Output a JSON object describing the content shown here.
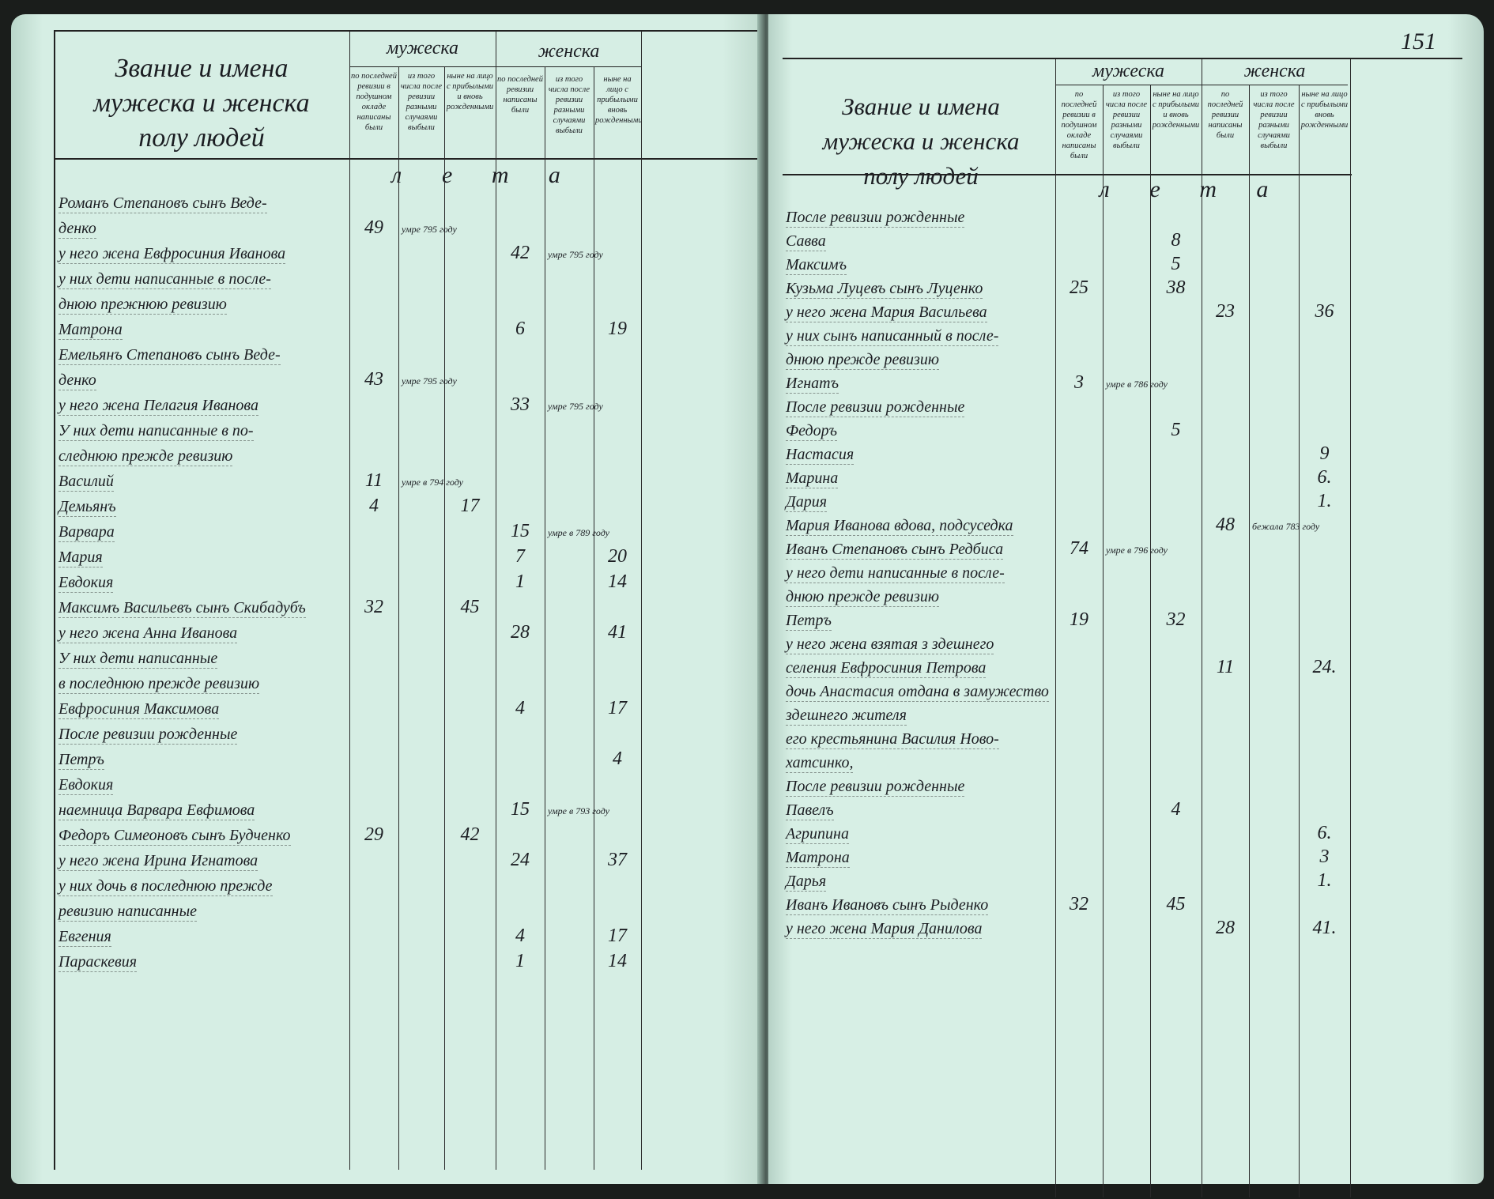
{
  "header": {
    "title_lines": [
      "Звание и имена",
      "мужеска и женска",
      "полу людей"
    ],
    "male_group": "мужеска",
    "female_group": "женска",
    "age_label": "лета",
    "male_columns": [
      "по последней ревизии в подушном окладе написаны были",
      "из того числа после ревизии разными случаями выбыли",
      "ныне на лицо с прибылыми и вновь рожденными"
    ],
    "female_columns": [
      "по последней ревизии написаны были",
      "из того числа после ревизии разными случаями выбыли",
      "ныне на лицо с прибылыми вновь рожденными"
    ]
  },
  "right_page_number": "151",
  "left_page": {
    "rows": [
      {
        "name": "Романъ Степановъ сынъ Веде-",
        "c": [
          "",
          "",
          "",
          "",
          "",
          ""
        ]
      },
      {
        "name": "денко",
        "c": [
          "49",
          "умре 795 году",
          "",
          "",
          "",
          ""
        ]
      },
      {
        "name": "у него жена Евфросиния Иванова",
        "c": [
          "",
          "",
          "",
          "42",
          "умре 795 году",
          ""
        ]
      },
      {
        "name": "у них дети написанные в после-",
        "c": [
          "",
          "",
          "",
          "",
          "",
          ""
        ]
      },
      {
        "name": "днюю прежнюю ревизию",
        "c": [
          "",
          "",
          "",
          "",
          "",
          ""
        ]
      },
      {
        "name": "Матрона",
        "c": [
          "",
          "",
          "",
          "6",
          "",
          "19"
        ]
      },
      {
        "name": "Емельянъ Степановъ сынъ Веде-",
        "c": [
          "",
          "",
          "",
          "",
          "",
          ""
        ]
      },
      {
        "name": "денко",
        "c": [
          "43",
          "умре 795 году",
          "",
          "",
          "",
          ""
        ]
      },
      {
        "name": "у него жена Пелагия Иванова",
        "c": [
          "",
          "",
          "",
          "33",
          "умре 795 году",
          ""
        ]
      },
      {
        "name": "У них дети написанные в по-",
        "c": [
          "",
          "",
          "",
          "",
          "",
          ""
        ]
      },
      {
        "name": "следнюю прежде ревизию",
        "c": [
          "",
          "",
          "",
          "",
          "",
          ""
        ]
      },
      {
        "name": "Василий",
        "c": [
          "11",
          "умре в 794 году",
          "",
          "",
          "",
          ""
        ]
      },
      {
        "name": "Демьянъ",
        "c": [
          "4",
          "",
          "17",
          "",
          "",
          ""
        ]
      },
      {
        "name": "Варвара",
        "c": [
          "",
          "",
          "",
          "15",
          "умре в 789 году",
          ""
        ]
      },
      {
        "name": "Мария",
        "c": [
          "",
          "",
          "",
          "7",
          "",
          "20"
        ]
      },
      {
        "name": "Евдокия",
        "c": [
          "",
          "",
          "",
          "1",
          "",
          "14"
        ]
      },
      {
        "name": "Максимъ Васильевъ сынъ Скибадубъ",
        "c": [
          "32",
          "",
          "45",
          "",
          "",
          ""
        ]
      },
      {
        "name": "у него жена Анна Иванова",
        "c": [
          "",
          "",
          "",
          "28",
          "",
          "41"
        ]
      },
      {
        "name": "У них дети написанные",
        "c": [
          "",
          "",
          "",
          "",
          "",
          ""
        ]
      },
      {
        "name": "в последнюю прежде ревизию",
        "c": [
          "",
          "",
          "",
          "",
          "",
          ""
        ]
      },
      {
        "name": "Евфросиния Максимова",
        "c": [
          "",
          "",
          "",
          "4",
          "",
          "17"
        ]
      },
      {
        "name": "После ревизии рожденные",
        "c": [
          "",
          "",
          "",
          "",
          "",
          ""
        ]
      },
      {
        "name": "Петръ",
        "c": [
          "",
          "",
          "",
          "",
          "",
          "4"
        ]
      },
      {
        "name": "Евдокия",
        "c": [
          "",
          "",
          "",
          "",
          "",
          ""
        ]
      },
      {
        "name": "наемница Варвара Евфимова",
        "c": [
          "",
          "",
          "",
          "15",
          "умре в 793 году",
          ""
        ]
      },
      {
        "name": "Федоръ Симеоновъ сынъ Будченко",
        "c": [
          "29",
          "",
          "42",
          "",
          "",
          ""
        ]
      },
      {
        "name": "у него жена Ирина Игнатова",
        "c": [
          "",
          "",
          "",
          "24",
          "",
          "37"
        ]
      },
      {
        "name": "у них дочь в последнюю прежде",
        "c": [
          "",
          "",
          "",
          "",
          "",
          ""
        ]
      },
      {
        "name": "ревизию написанные",
        "c": [
          "",
          "",
          "",
          "",
          "",
          ""
        ]
      },
      {
        "name": "Евгения",
        "c": [
          "",
          "",
          "",
          "4",
          "",
          "17"
        ]
      },
      {
        "name": "Параскевия",
        "c": [
          "",
          "",
          "",
          "1",
          "",
          "14"
        ]
      }
    ]
  },
  "right_page": {
    "rows": [
      {
        "name": "После ревизии рожденные",
        "c": [
          "",
          "",
          "",
          "",
          "",
          ""
        ]
      },
      {
        "name": "Савва",
        "c": [
          "",
          "",
          "8",
          "",
          "",
          ""
        ]
      },
      {
        "name": "Максимъ",
        "c": [
          "",
          "",
          "5",
          "",
          "",
          ""
        ]
      },
      {
        "name": "Кузьма Луцевъ сынъ Луценко",
        "c": [
          "25",
          "",
          "38",
          "",
          "",
          ""
        ]
      },
      {
        "name": "у него жена Мария Васильева",
        "c": [
          "",
          "",
          "",
          "23",
          "",
          "36"
        ]
      },
      {
        "name": "у них сынъ написанный в после-",
        "c": [
          "",
          "",
          "",
          "",
          "",
          ""
        ]
      },
      {
        "name": "днюю прежде ревизию",
        "c": [
          "",
          "",
          "",
          "",
          "",
          ""
        ]
      },
      {
        "name": "Игнатъ",
        "c": [
          "3",
          "умре в 786 году",
          "",
          "",
          "",
          ""
        ]
      },
      {
        "name": "После ревизии рожденные",
        "c": [
          "",
          "",
          "",
          "",
          "",
          ""
        ]
      },
      {
        "name": "Федоръ",
        "c": [
          "",
          "",
          "5",
          "",
          "",
          ""
        ]
      },
      {
        "name": "Настасия",
        "c": [
          "",
          "",
          "",
          "",
          "",
          "9"
        ]
      },
      {
        "name": "Марина",
        "c": [
          "",
          "",
          "",
          "",
          "",
          "6."
        ]
      },
      {
        "name": "Дария",
        "c": [
          "",
          "",
          "",
          "",
          "",
          "1."
        ]
      },
      {
        "name": "Мария Иванова вдова, подсуседка",
        "c": [
          "",
          "",
          "",
          "48",
          "бежала 783 году",
          ""
        ]
      },
      {
        "name": "Иванъ Степановъ сынъ Редбиса",
        "c": [
          "74",
          "умре в 796 году",
          "",
          "",
          "",
          ""
        ]
      },
      {
        "name": "у него дети написанные в после-",
        "c": [
          "",
          "",
          "",
          "",
          "",
          ""
        ]
      },
      {
        "name": "днюю прежде ревизию",
        "c": [
          "",
          "",
          "",
          "",
          "",
          ""
        ]
      },
      {
        "name": "Петръ",
        "c": [
          "19",
          "",
          "32",
          "",
          "",
          ""
        ]
      },
      {
        "name": "у него жена взятая з здешнего",
        "c": [
          "",
          "",
          "",
          "",
          "",
          ""
        ]
      },
      {
        "name": "селения Евфросиния Петрова",
        "c": [
          "",
          "",
          "",
          "11",
          "",
          "24."
        ]
      },
      {
        "name": "дочь Анастасия отдана в замужество",
        "c": [
          "",
          "",
          "",
          "",
          "",
          ""
        ]
      },
      {
        "name": "здешнего жителя",
        "c": [
          "",
          "",
          "",
          "",
          "",
          ""
        ]
      },
      {
        "name": "его крестьянина Василия Ново-",
        "c": [
          "",
          "",
          "",
          "",
          "",
          ""
        ]
      },
      {
        "name": "хатсинко,",
        "c": [
          "",
          "",
          "",
          "",
          "",
          ""
        ]
      },
      {
        "name": "После ревизии рожденные",
        "c": [
          "",
          "",
          "",
          "",
          "",
          ""
        ]
      },
      {
        "name": "Павелъ",
        "c": [
          "",
          "",
          "4",
          "",
          "",
          ""
        ]
      },
      {
        "name": "Агрипина",
        "c": [
          "",
          "",
          "",
          "",
          "",
          "6."
        ]
      },
      {
        "name": "Матрона",
        "c": [
          "",
          "",
          "",
          "",
          "",
          "3"
        ]
      },
      {
        "name": "Дарья",
        "c": [
          "",
          "",
          "",
          "",
          "",
          "1."
        ]
      },
      {
        "name": "Иванъ Ивановъ сынъ Рыденко",
        "c": [
          "32",
          "",
          "45",
          "",
          "",
          ""
        ]
      },
      {
        "name": "у него жена Мария Данилова",
        "c": [
          "",
          "",
          "",
          "28",
          "",
          "41."
        ]
      }
    ]
  }
}
